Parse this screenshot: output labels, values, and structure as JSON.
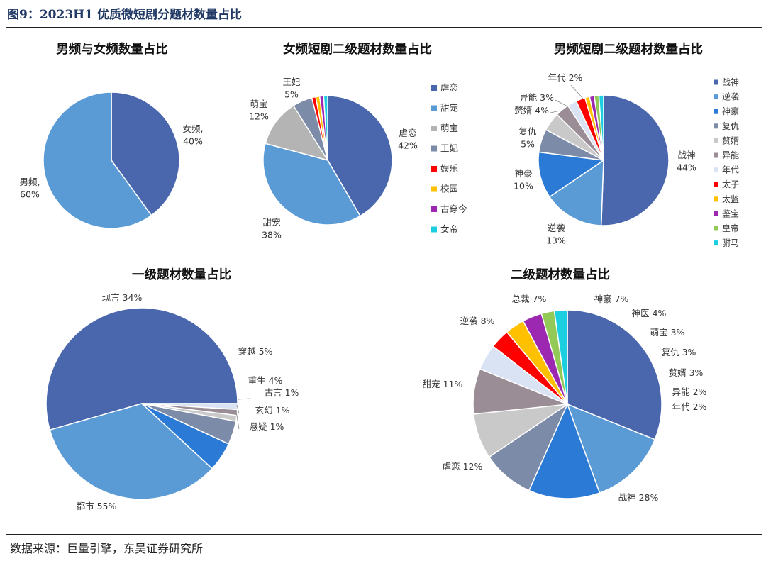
{
  "figure_title": "图9：2023H1 优质微短剧分题材数量占比",
  "source": "数据来源：巨量引擎，东吴证券研究所",
  "chart_data": [
    {
      "type": "pie",
      "title": "男频与女频数量占比",
      "slices": [
        {
          "label": "女频,",
          "value": 40,
          "pct": "40%",
          "color": "#4a67ad"
        },
        {
          "label": "男频,",
          "value": 60,
          "pct": "60%",
          "color": "#5b9bd5"
        }
      ]
    },
    {
      "type": "pie",
      "title": "女频短剧二级题材数量占比",
      "legend_position": "right",
      "slices": [
        {
          "label": "虐恋",
          "value": 42,
          "pct": "42%",
          "color": "#4a67ad"
        },
        {
          "label": "甜宠",
          "value": 38,
          "pct": "38%",
          "color": "#5b9bd5"
        },
        {
          "label": "萌宝",
          "value": 12,
          "pct": "12%",
          "color": "#b4b4b4"
        },
        {
          "label": "王妃",
          "value": 5,
          "pct": "5%",
          "color": "#7b8ba8"
        },
        {
          "label": "娱乐",
          "value": 1,
          "pct": "",
          "color": "#ff0000"
        },
        {
          "label": "校园",
          "value": 1,
          "pct": "",
          "color": "#ffc000"
        },
        {
          "label": "古穿今",
          "value": 1,
          "pct": "",
          "color": "#9c27b0"
        },
        {
          "label": "女帝",
          "value": 1,
          "pct": "",
          "color": "#1ccfe0"
        }
      ]
    },
    {
      "type": "pie",
      "title": "男频短剧二级题材数量占比",
      "legend_position": "right",
      "slices": [
        {
          "label": "战神",
          "value": 44,
          "pct": "44%",
          "color": "#4a67ad"
        },
        {
          "label": "逆袭",
          "value": 13,
          "pct": "13%",
          "color": "#5b9bd5"
        },
        {
          "label": "神豪",
          "value": 10,
          "pct": "10%",
          "color": "#2a7ad6"
        },
        {
          "label": "复仇",
          "value": 5,
          "pct": "5%",
          "color": "#7b8ba8"
        },
        {
          "label": "赘婿",
          "value": 4,
          "pct": "4%",
          "color": "#c9c9c9"
        },
        {
          "label": "异能",
          "value": 3,
          "pct": "3%",
          "color": "#9a8d95"
        },
        {
          "label": "年代",
          "value": 2,
          "pct": "2%",
          "color": "#d9e3f3"
        },
        {
          "label": "太子",
          "value": 2,
          "pct": "",
          "color": "#ff0000"
        },
        {
          "label": "太监",
          "value": 1,
          "pct": "",
          "color": "#ffc000"
        },
        {
          "label": "鉴宝",
          "value": 1,
          "pct": "",
          "color": "#9c27b0"
        },
        {
          "label": "皇帝",
          "value": 1,
          "pct": "",
          "color": "#92c957"
        },
        {
          "label": "驸马",
          "value": 1,
          "pct": "",
          "color": "#1ccfe0"
        }
      ]
    },
    {
      "type": "pie",
      "title": "一级题材数量占比",
      "slices": [
        {
          "label": "都市",
          "value": 55,
          "pct": "55%",
          "color": "#4a67ad"
        },
        {
          "label": "现言",
          "value": 34,
          "pct": "34%",
          "color": "#5b9bd5"
        },
        {
          "label": "穿越",
          "value": 5,
          "pct": "5%",
          "color": "#2a7ad6"
        },
        {
          "label": "重生",
          "value": 4,
          "pct": "4%",
          "color": "#7b8ba8"
        },
        {
          "label": "古言",
          "value": 1,
          "pct": "1%",
          "color": "#c9c9c9"
        },
        {
          "label": "玄幻",
          "value": 1,
          "pct": "1%",
          "color": "#9a8d95"
        },
        {
          "label": "悬疑",
          "value": 1,
          "pct": "1%",
          "color": "#d9e3f3"
        }
      ]
    },
    {
      "type": "pie",
      "title": "二级题材数量占比",
      "slices": [
        {
          "label": "战神",
          "value": 28,
          "pct": "28%",
          "color": "#4a67ad"
        },
        {
          "label": "虐恋",
          "value": 12,
          "pct": "12%",
          "color": "#5b9bd5"
        },
        {
          "label": "甜宠",
          "value": 11,
          "pct": "11%",
          "color": "#2a7ad6"
        },
        {
          "label": "逆袭",
          "value": 8,
          "pct": "8%",
          "color": "#7b8ba8"
        },
        {
          "label": "总裁",
          "value": 7,
          "pct": "7%",
          "color": "#c9c9c9"
        },
        {
          "label": "神豪",
          "value": 7,
          "pct": "7%",
          "color": "#9a8d95"
        },
        {
          "label": "神医",
          "value": 4,
          "pct": "4%",
          "color": "#d9e3f3"
        },
        {
          "label": "萌宝",
          "value": 3,
          "pct": "3%",
          "color": "#ff0000"
        },
        {
          "label": "复仇",
          "value": 3,
          "pct": "3%",
          "color": "#ffc000"
        },
        {
          "label": "赘婿",
          "value": 3,
          "pct": "3%",
          "color": "#9c27b0"
        },
        {
          "label": "异能",
          "value": 2,
          "pct": "2%",
          "color": "#92c957"
        },
        {
          "label": "年代",
          "value": 2,
          "pct": "2%",
          "color": "#1ccfe0"
        }
      ]
    }
  ]
}
